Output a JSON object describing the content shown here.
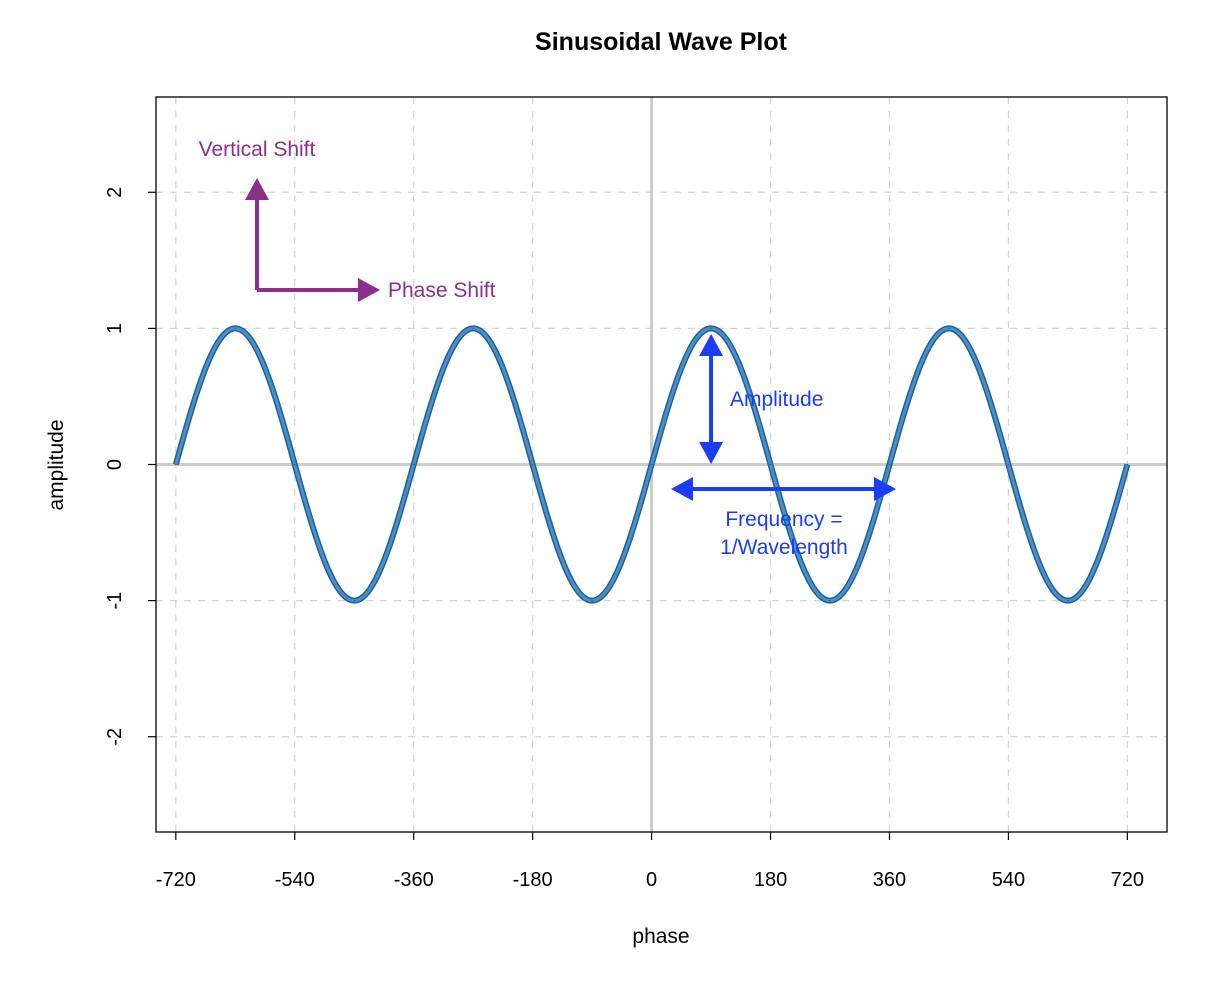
{
  "chart_data": {
    "type": "line",
    "title": "Sinusoidal Wave Plot",
    "xlabel": "phase",
    "ylabel": "amplitude",
    "xlim": [
      -750,
      780
    ],
    "ylim": [
      -2.7,
      2.7
    ],
    "x_ticks": [
      -720,
      -540,
      -360,
      -180,
      0,
      180,
      360,
      540,
      720
    ],
    "x_tick_labels": [
      "-720",
      "-540",
      "-360",
      "-180",
      "0",
      "180",
      "360",
      "540",
      "720"
    ],
    "y_ticks": [
      -2,
      -1,
      0,
      1,
      2
    ],
    "y_tick_labels": [
      "-2",
      "-1",
      "0",
      "1",
      "2"
    ],
    "grid": true,
    "series": [
      {
        "function": "sin(phase)",
        "x_range": [
          -720,
          720
        ],
        "x": [
          -720,
          -630,
          -540,
          -450,
          -360,
          -270,
          -180,
          -90,
          0,
          90,
          180,
          270,
          360,
          450,
          540,
          630,
          720
        ],
        "y": [
          0,
          1,
          0,
          -1,
          0,
          1,
          0,
          -1,
          0,
          1,
          0,
          -1,
          0,
          1,
          0,
          -1,
          0
        ],
        "color": "#4a90c8",
        "outline_color": "#1f5f9a"
      }
    ],
    "annotations": [
      {
        "id": "vertical-shift",
        "text": "Vertical Shift",
        "color": "#8b2f8e"
      },
      {
        "id": "phase-shift",
        "text": "Phase Shift",
        "color": "#8b2f8e"
      },
      {
        "id": "amplitude",
        "text": "Amplitude",
        "color": "#1a3df5"
      },
      {
        "id": "frequency",
        "lines": [
          "Frequency =",
          "1/Wavelength"
        ],
        "color": "#1a3df5"
      }
    ]
  },
  "colors": {
    "grid": "#d3d3d3",
    "zero_lines": "#cccccc",
    "frame": "#000000",
    "purple": "#8b2f8e",
    "blue": "#1a3df5"
  }
}
